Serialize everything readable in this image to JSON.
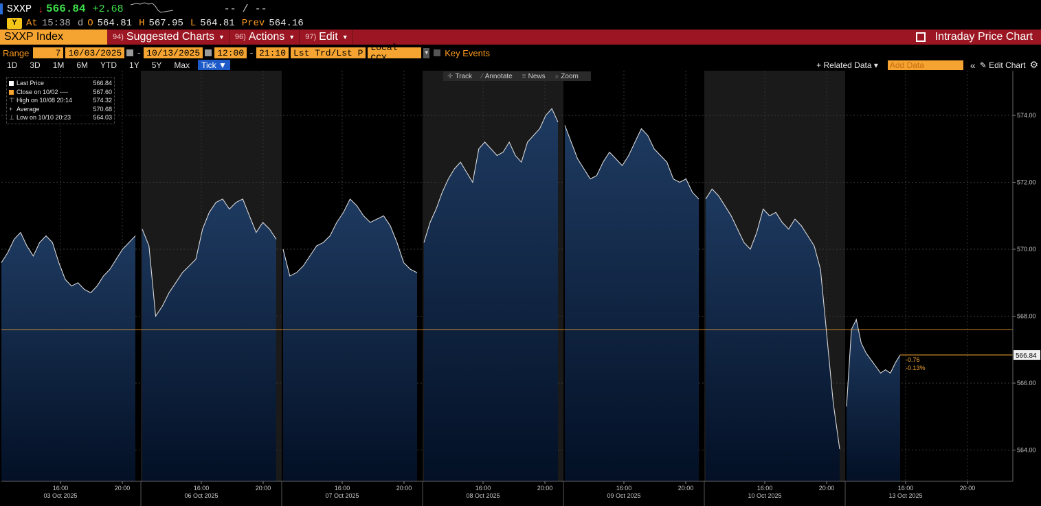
{
  "ticker": {
    "symbol": "SXXP",
    "direction_icon": "down-arrow-icon",
    "direction_glyph": "↓",
    "last": "566.84",
    "change": "+2.68",
    "bid_ask": "-- / --"
  },
  "quote_line": {
    "badge": "Y",
    "at_label": "At",
    "time": "15:38",
    "d_label": "d",
    "open_label": "O",
    "open": "564.81",
    "high_label": "H",
    "high": "567.95",
    "low_label": "L",
    "low": "564.81",
    "prev_label": "Prev",
    "prev": "564.16"
  },
  "menubar": {
    "security": "SXXP Index",
    "menus": [
      {
        "num": "94)",
        "label": "Suggested Charts"
      },
      {
        "num": "96)",
        "label": "Actions"
      },
      {
        "num": "97)",
        "label": "Edit"
      }
    ],
    "right_title": "Intraday Price Chart"
  },
  "range_bar": {
    "range_label": "Range",
    "range_value": "7",
    "start_date": "10/03/2025",
    "end_date": "10/13/2025",
    "start_time": "12:00",
    "end_time": "21:10",
    "field": "Lst Trd/Lst P",
    "currency": "Local CCY",
    "key_events": "Key Events"
  },
  "period_bar": {
    "periods": [
      "1D",
      "3D",
      "1M",
      "6M",
      "YTD",
      "1Y",
      "5Y",
      "Max"
    ],
    "active": "Tick ▼",
    "related": "+ Related Data ▾",
    "add_data_placeholder": "Add Data",
    "edit_chart": "✎ Edit Chart"
  },
  "tool_chips": [
    {
      "icon": "crosshair-icon",
      "glyph": "✛",
      "label": "Track"
    },
    {
      "icon": "pencil-icon",
      "glyph": "⁄",
      "label": "Annotate"
    },
    {
      "icon": "news-icon",
      "glyph": "≡",
      "label": "News"
    },
    {
      "icon": "zoom-icon",
      "glyph": "⌕",
      "label": "Zoom"
    }
  ],
  "legend": [
    {
      "sym": "■",
      "color": "#ffffff",
      "label": "Last Price",
      "value": "566.84"
    },
    {
      "sym": "■",
      "color": "#f5a431",
      "label": "Close on 10/02 ----",
      "value": "567.60"
    },
    {
      "sym": "⊤",
      "color": "#cccccc",
      "label": "High on 10/08 20:14",
      "value": "574.32"
    },
    {
      "sym": "+",
      "color": "#cccccc",
      "label": "Average",
      "value": "570.68"
    },
    {
      "sym": "⊥",
      "color": "#cccccc",
      "label": "Low on 10/10 20:23",
      "value": "564.03"
    }
  ],
  "colors": {
    "accent_orange": "#f5a431",
    "menubar_red": "#9b1622",
    "up_green": "#3ee04a",
    "down_red": "#ff3030",
    "area_top": "#1e3a60",
    "area_bottom": "#031025"
  },
  "chart_data": {
    "type": "area",
    "ylim": [
      563,
      575
    ],
    "y_ticks": [
      "564.00",
      "566.00",
      "568.00",
      "570.00",
      "572.00",
      "574.00"
    ],
    "reference_line": {
      "label": "Close on 10/02",
      "value": 567.6
    },
    "last_value_label": "566.84",
    "change_annotation": [
      "-0.76",
      "-0.13%"
    ],
    "days": [
      {
        "date": "03 Oct 2025",
        "tick_times": [
          "16:00",
          "20:00"
        ],
        "values": [
          569.6,
          569.9,
          570.3,
          570.5,
          570.1,
          569.8,
          570.2,
          570.4,
          570.2,
          569.6,
          569.1,
          568.9,
          569.0,
          568.8,
          568.7,
          568.9,
          569.2,
          569.4,
          569.7,
          570.0,
          570.2,
          570.4
        ]
      },
      {
        "date": "06 Oct 2025",
        "tick_times": [
          "16:00",
          "20:00"
        ],
        "values": [
          570.6,
          570.1,
          568.0,
          568.3,
          568.7,
          569.0,
          569.3,
          569.5,
          569.7,
          570.6,
          571.1,
          571.4,
          571.5,
          571.2,
          571.4,
          571.5,
          571.0,
          570.5,
          570.8,
          570.6,
          570.3
        ]
      },
      {
        "date": "07 Oct 2025",
        "tick_times": [
          "16:00",
          "20:00"
        ],
        "values": [
          570.0,
          569.2,
          569.3,
          569.5,
          569.8,
          570.1,
          570.2,
          570.4,
          570.8,
          571.1,
          571.5,
          571.3,
          571.0,
          570.8,
          570.9,
          571.0,
          570.7,
          570.2,
          569.6,
          569.4,
          569.3
        ]
      },
      {
        "date": "08 Oct 2025",
        "tick_times": [
          "16:00",
          "20:00"
        ],
        "values": [
          570.2,
          570.8,
          571.2,
          571.7,
          572.1,
          572.4,
          572.6,
          572.3,
          572.0,
          573.0,
          573.2,
          573.0,
          572.8,
          572.9,
          573.2,
          572.8,
          572.6,
          573.2,
          573.4,
          573.6,
          574.0,
          574.2,
          573.8
        ]
      },
      {
        "date": "09 Oct 2025",
        "tick_times": [
          "16:00",
          "20:00"
        ],
        "values": [
          573.7,
          573.2,
          572.7,
          572.4,
          572.1,
          572.2,
          572.6,
          572.9,
          572.7,
          572.5,
          572.8,
          573.2,
          573.6,
          573.4,
          573.0,
          572.8,
          572.6,
          572.1,
          572.0,
          572.1,
          571.7,
          571.5
        ]
      },
      {
        "date": "10 Oct 2025",
        "tick_times": [
          "16:00",
          "20:00"
        ],
        "values": [
          571.5,
          571.8,
          571.6,
          571.3,
          571.0,
          570.6,
          570.2,
          570.0,
          570.5,
          571.2,
          571.0,
          571.1,
          570.8,
          570.6,
          570.9,
          570.7,
          570.4,
          570.1,
          569.4,
          567.4,
          565.4,
          564.03
        ]
      },
      {
        "date": "13 Oct 2025",
        "tick_times": [
          "16:00",
          "20:00"
        ],
        "values": [
          565.3,
          567.6,
          567.9,
          567.2,
          566.9,
          566.7,
          566.5,
          566.3,
          566.4,
          566.3,
          566.6,
          566.84
        ]
      }
    ]
  }
}
